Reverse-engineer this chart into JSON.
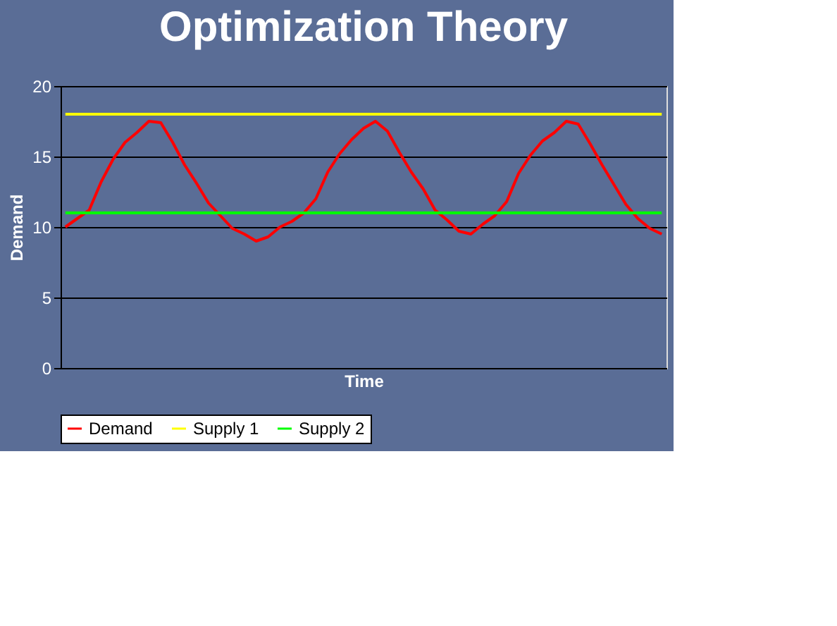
{
  "chart_data": {
    "type": "line",
    "title": "Optimization Theory",
    "xlabel": "Time",
    "ylabel": "Demand",
    "categories": [
      null,
      null,
      null,
      null,
      null,
      null,
      null,
      null,
      null,
      null,
      null,
      null,
      null,
      null,
      null,
      null,
      null,
      null,
      null,
      null,
      null,
      null,
      null,
      null,
      null,
      null,
      null,
      null,
      null,
      null,
      null,
      null,
      null,
      null,
      null,
      null,
      null,
      null,
      null,
      null,
      null,
      null,
      null,
      null,
      null,
      null,
      null,
      null,
      null,
      null,
      null
    ],
    "series": [
      {
        "name": "Demand",
        "color": "#ff0000",
        "values": [
          10,
          10.6,
          11.2,
          13.2,
          14.8,
          16,
          16.7,
          17.5,
          17.4,
          16,
          14.4,
          13.1,
          11.7,
          10.8,
          9.9,
          9.5,
          9,
          9.3,
          10,
          10.4,
          11,
          12,
          13.9,
          15.2,
          16.2,
          17,
          17.5,
          16.8,
          15.3,
          13.9,
          12.7,
          11.2,
          10.5,
          9.7,
          9.5,
          10.2,
          10.8,
          11.8,
          13.8,
          15.1,
          16.1,
          16.7,
          17.5,
          17.3,
          15.9,
          14.4,
          13,
          11.6,
          10.6,
          9.9,
          9.5
        ]
      },
      {
        "name": "Supply 1",
        "color": "#ffff00",
        "values": [
          18,
          18,
          18,
          18,
          18,
          18,
          18,
          18,
          18,
          18,
          18,
          18,
          18,
          18,
          18,
          18,
          18,
          18,
          18,
          18,
          18,
          18,
          18,
          18,
          18,
          18,
          18,
          18,
          18,
          18,
          18,
          18,
          18,
          18,
          18,
          18,
          18,
          18,
          18,
          18,
          18,
          18,
          18,
          18,
          18,
          18,
          18,
          18,
          18,
          18,
          18
        ]
      },
      {
        "name": "Supply 2",
        "color": "#00ff00",
        "values": [
          11,
          11,
          11,
          11,
          11,
          11,
          11,
          11,
          11,
          11,
          11,
          11,
          11,
          11,
          11,
          11,
          11,
          11,
          11,
          11,
          11,
          11,
          11,
          11,
          11,
          11,
          11,
          11,
          11,
          11,
          11,
          11,
          11,
          11,
          11,
          11,
          11,
          11,
          11,
          11,
          11,
          11,
          11,
          11,
          11,
          11,
          11,
          11,
          11,
          11,
          11
        ]
      }
    ],
    "ylim": [
      0,
      20
    ],
    "yticks": [
      0,
      5,
      10,
      15,
      20
    ],
    "grid": "y",
    "legend": "bottom",
    "tick_labels": "y",
    "marker": "none",
    "line_style": "solid"
  }
}
